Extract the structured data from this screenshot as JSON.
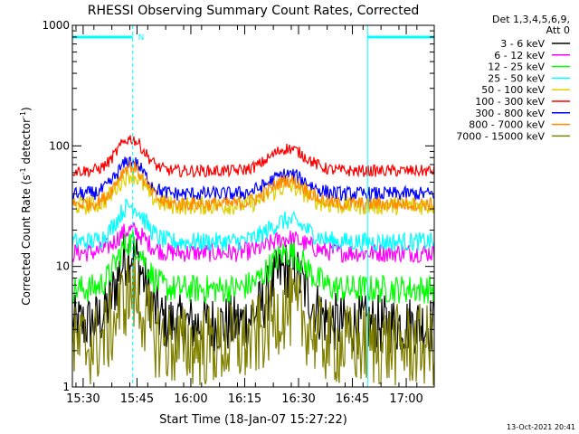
{
  "chart_data": {
    "type": "line",
    "title": "RHESSI Observing Summary Count Rates, Corrected",
    "xlabel": "Start Time (18-Jan-07 15:27:22)",
    "ylabel_main": "Corrected Count Rate (s",
    "ylabel_sup1": "-1",
    "ylabel_mid": " detector",
    "ylabel_sup2": "-1",
    "ylabel_end": ")",
    "y_scale": "log",
    "ylim": [
      1,
      1000
    ],
    "xlim_minutes": [
      15.45,
      17.13
    ],
    "y_ticks": [
      "1",
      "10",
      "100",
      "1000"
    ],
    "x_ticks": [
      {
        "label": "15:30",
        "t": 15.5
      },
      {
        "label": "15:45",
        "t": 15.75
      },
      {
        "label": "16:00",
        "t": 16.0
      },
      {
        "label": "16:15",
        "t": 16.25
      },
      {
        "label": "16:30",
        "t": 16.5
      },
      {
        "label": "16:45",
        "t": 16.75
      },
      {
        "label": "17:00",
        "t": 17.0
      }
    ],
    "legend_header": [
      "Det 1,3,4,5,6,9,",
      "Att 0"
    ],
    "legend_position": "right",
    "series": [
      {
        "name": "3 - 6 keV",
        "color": "#000000",
        "base": 3.3,
        "peak1": 13.0,
        "peak2": 9.5,
        "noise": 0.25
      },
      {
        "name": "6 - 12 keV",
        "color": "#ff00ff",
        "base": 13.0,
        "peak1": 20.0,
        "peak2": 17.0,
        "noise": 0.08
      },
      {
        "name": "12 - 25 keV",
        "color": "#00ff00",
        "base": 6.5,
        "peak1": 16.0,
        "peak2": 13.0,
        "noise": 0.12
      },
      {
        "name": "25 - 50 keV",
        "color": "#00ffff",
        "base": 16.0,
        "peak1": 32.0,
        "peak2": 24.0,
        "noise": 0.08
      },
      {
        "name": "50 - 100 keV",
        "color": "#e0d000",
        "base": 32.0,
        "peak1": 58.0,
        "peak2": 46.0,
        "noise": 0.08
      },
      {
        "name": "100 - 300 keV",
        "color": "#ff0000",
        "base": 62.0,
        "peak1": 115.0,
        "peak2": 95.0,
        "noise": 0.05
      },
      {
        "name": "300 - 800 keV",
        "color": "#0000ff",
        "base": 40.0,
        "peak1": 75.0,
        "peak2": 58.0,
        "noise": 0.06
      },
      {
        "name": "800 - 7000 keV",
        "color": "#ff8c00",
        "base": 33.0,
        "peak1": 68.0,
        "peak2": 52.0,
        "noise": 0.06
      },
      {
        "name": "7000 - 15000 keV",
        "color": "#808000",
        "base": 2.2,
        "peak1": 6.0,
        "peak2": 4.5,
        "noise": 0.35
      }
    ],
    "peak_times": [
      15.72,
      16.45
    ],
    "annotations": {
      "night_bar_label": "N",
      "night_bars": [
        [
          15.45,
          15.73
        ],
        [
          16.82,
          17.13
        ]
      ],
      "vlines_solid": [
        15.45,
        16.82
      ],
      "vlines_dashed": [
        15.73,
        17.13
      ]
    }
  },
  "footer": {
    "date_stamp": "13-Oct-2021 20:41"
  }
}
